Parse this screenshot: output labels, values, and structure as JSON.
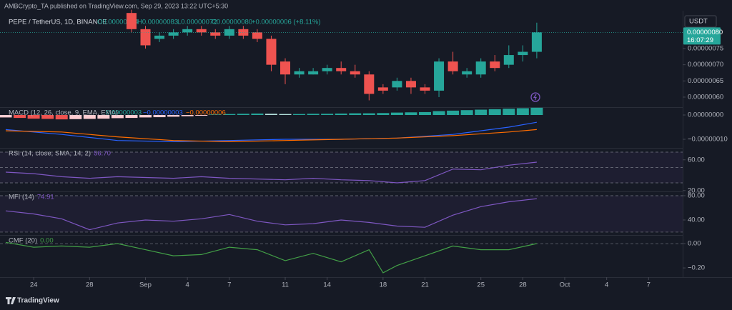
{
  "header": {
    "publisher": "AMBCrypto_TA published on TradingView.com, Sep 29, 2023 13:22 UTC+5:30"
  },
  "currency": "USDT",
  "footer": "TradingView",
  "chart_data": [
    {
      "type": "candlestick",
      "title": "PEPE / TetherUS, 1D, BINANCE",
      "ohlc_labels": [
        "O0.00000074",
        "H0.00000083",
        "L0.00000072",
        "C0.00000080"
      ],
      "change_label": "+0.00000006 (+8.11%)",
      "last_price_label": "0.00000080",
      "countdown": "16:07:29",
      "up_color": "#26a69a",
      "down_color": "#ef5350",
      "x": [
        9,
        10,
        11,
        12,
        13,
        14,
        15,
        16,
        17,
        18,
        19,
        20,
        21,
        22,
        23,
        24,
        25,
        26,
        27,
        28,
        29,
        30,
        31,
        32,
        33,
        34,
        35,
        36,
        37,
        38
      ],
      "open": [
        8.6e-07,
        8.1e-07,
        7.8e-07,
        7.9e-07,
        8e-07,
        8.1e-07,
        8e-07,
        7.9e-07,
        8.1e-07,
        8e-07,
        7.8e-07,
        7.1e-07,
        6.7e-07,
        6.7e-07,
        6.8e-07,
        6.9e-07,
        6.8e-07,
        6.7e-07,
        6.3e-07,
        6.3e-07,
        6.5e-07,
        6.3e-07,
        6.2e-07,
        7.1e-07,
        6.7e-07,
        6.7e-07,
        7.1e-07,
        7e-07,
        7.3e-07,
        7.4e-07
      ],
      "high": [
        8.7e-07,
        8.2e-07,
        8e-07,
        8.1e-07,
        8.2e-07,
        8.2e-07,
        8.1e-07,
        8.2e-07,
        8.2e-07,
        8.1e-07,
        7.9e-07,
        7.2e-07,
        6.9e-07,
        6.9e-07,
        7e-07,
        7.1e-07,
        7e-07,
        6.8e-07,
        6.4e-07,
        6.6e-07,
        6.6e-07,
        6.4e-07,
        7.2e-07,
        7.4e-07,
        6.9e-07,
        7.2e-07,
        7.3e-07,
        7.6e-07,
        7.6e-07,
        8.3e-07
      ],
      "low": [
        8e-07,
        7.5e-07,
        7.7e-07,
        7.8e-07,
        7.9e-07,
        7.9e-07,
        7.8e-07,
        7.8e-07,
        7.8e-07,
        7.7e-07,
        6.8e-07,
        6.4e-07,
        6.6e-07,
        6.7e-07,
        6.7e-07,
        6.7e-07,
        6.6e-07,
        5.9e-07,
        6.1e-07,
        6.2e-07,
        6.1e-07,
        6.1e-07,
        6e-07,
        6.7e-07,
        6.6e-07,
        6.6e-07,
        6.8e-07,
        6.9e-07,
        7.1e-07,
        7.2e-07
      ],
      "close": [
        8.1e-07,
        7.6e-07,
        7.9e-07,
        8e-07,
        8.1e-07,
        8e-07,
        7.9e-07,
        8.1e-07,
        7.9e-07,
        7.8e-07,
        7e-07,
        6.7e-07,
        6.8e-07,
        6.8e-07,
        6.9e-07,
        6.8e-07,
        6.7e-07,
        6.1e-07,
        6.2e-07,
        6.5e-07,
        6.3e-07,
        6.2e-07,
        7.1e-07,
        6.8e-07,
        6.8e-07,
        7.1e-07,
        6.9e-07,
        7.3e-07,
        7.4e-07,
        8e-07
      ],
      "ylim": [
        5.69e-07,
        8.67e-07
      ],
      "yticks": [
        {
          "value": 7.5e-07,
          "label": "0.00000075"
        },
        {
          "value": 7e-07,
          "label": "0.00000070"
        },
        {
          "value": 6.5e-07,
          "label": "0.00000065"
        },
        {
          "value": 6e-07,
          "label": "0.00000060"
        }
      ],
      "xlim": [
        -0.41,
        48.44
      ],
      "xticks": [
        {
          "value": 2,
          "label": "24"
        },
        {
          "value": 6,
          "label": "28"
        },
        {
          "value": 10,
          "label": "Sep"
        },
        {
          "value": 13,
          "label": "4"
        },
        {
          "value": 16,
          "label": "7"
        },
        {
          "value": 20,
          "label": "11"
        },
        {
          "value": 23,
          "label": "14"
        },
        {
          "value": 27,
          "label": "18"
        },
        {
          "value": 30,
          "label": "21"
        },
        {
          "value": 34,
          "label": "25"
        },
        {
          "value": 37,
          "label": "28"
        },
        {
          "value": 40,
          "label": "Oct"
        },
        {
          "value": 43,
          "label": "4"
        },
        {
          "value": 46,
          "label": "7"
        }
      ]
    },
    {
      "type": "macd",
      "title": "MACD (12, 26, close, 9, EMA, EMA)",
      "legend_values": [
        "0.00000003",
        "−0.00000003",
        "−0.00000006"
      ],
      "legend_colors": [
        "#26a69a",
        "#2962ff",
        "#ff6d00"
      ],
      "x": [
        0,
        1,
        2,
        3,
        4,
        5,
        6,
        7,
        8,
        9,
        10,
        11,
        12,
        13,
        14,
        15,
        16,
        17,
        18,
        19,
        20,
        21,
        22,
        23,
        24,
        25,
        26,
        27,
        28,
        29,
        30,
        31,
        32,
        33,
        34,
        35,
        36,
        37,
        38
      ],
      "histogram": [
        -1e-08,
        -1.2e-08,
        -1.5e-08,
        -1.6e-08,
        -1.8e-08,
        -1.7e-08,
        -1.6e-08,
        -1.5e-08,
        -1.3e-08,
        -1.2e-08,
        -1e-08,
        -9e-09,
        -7e-09,
        -5e-09,
        -3e-09,
        2e-09,
        4e-09,
        5e-09,
        6e-09,
        5e-09,
        4e-09,
        4e-09,
        5e-09,
        5e-09,
        6e-09,
        7e-09,
        7e-09,
        8e-09,
        1e-08,
        1.1e-08,
        1.2e-08,
        1.6e-08,
        1.8e-08,
        2e-08,
        2.2e-08,
        2.4e-08,
        2.6e-08,
        2.8e-08,
        3e-08
      ],
      "histogram_colors": {
        "positive_rising": "#26a69a",
        "positive_falling": "#b2dfdb",
        "negative_falling": "#ef5350",
        "negative_rising": "#ffcdd2"
      },
      "lines": [
        {
          "color": "#2962ff",
          "x": [
            0,
            4,
            8,
            12,
            16,
            20,
            24,
            28,
            32,
            36,
            38
          ],
          "values": [
            -6e-08,
            -8e-08,
            -1.05e-07,
            -1.1e-07,
            -1.05e-07,
            -1e-07,
            -1e-07,
            -9.5e-08,
            -8e-08,
            -5e-08,
            -3e-08
          ]
        },
        {
          "color": "#ff6d00",
          "x": [
            0,
            4,
            8,
            12,
            16,
            20,
            24,
            28,
            32,
            36,
            38
          ],
          "values": [
            -6.5e-08,
            -7e-08,
            -9e-08,
            -1.05e-07,
            -1.1e-07,
            -1.05e-07,
            -1e-07,
            -9.5e-08,
            -8.5e-08,
            -7e-08,
            -6e-08
          ]
        }
      ],
      "ylim": [
        -1.294e-07,
        2.65e-08
      ],
      "yticks": [
        {
          "value": 0,
          "label": "0.00000000"
        },
        {
          "value": -1e-07,
          "label": "−0.00000010"
        }
      ]
    },
    {
      "type": "line",
      "title": "RSI (14, close, SMA, 14, 2)",
      "legend_value": "56.70",
      "color": "#7e57c2",
      "x": [
        0,
        2,
        4,
        6,
        8,
        10,
        12,
        14,
        16,
        18,
        20,
        22,
        24,
        26,
        28,
        30,
        32,
        34,
        36,
        38
      ],
      "values": [
        44,
        42,
        38,
        36,
        38,
        37,
        36,
        38,
        36,
        35,
        34,
        36,
        34,
        33,
        30,
        33,
        48,
        47,
        53,
        57
      ],
      "bands": [
        70,
        50,
        30
      ],
      "ylim": [
        19.8,
        73.7
      ],
      "yticks": [
        {
          "value": 60,
          "label": "60.00"
        },
        {
          "value": 20,
          "label": "20.00"
        }
      ]
    },
    {
      "type": "line",
      "title": "MFI (14)",
      "legend_value": "74.91",
      "color": "#7e57c2",
      "x": [
        0,
        2,
        4,
        6,
        8,
        10,
        12,
        14,
        16,
        18,
        20,
        22,
        24,
        26,
        28,
        30,
        32,
        34,
        36,
        38
      ],
      "values": [
        55,
        50,
        42,
        24,
        35,
        40,
        38,
        42,
        49,
        38,
        32,
        34,
        40,
        36,
        30,
        28,
        48,
        62,
        70,
        75
      ],
      "bands": [
        80,
        20
      ],
      "ylim": [
        17.6,
        84.7
      ],
      "yticks": [
        {
          "value": 80,
          "label": "80.00"
        },
        {
          "value": 40,
          "label": "40.00"
        }
      ]
    },
    {
      "type": "line",
      "title": "CMF (20)",
      "legend_value": "0.00",
      "color": "#43a047",
      "x": [
        0,
        2,
        4,
        6,
        8,
        10,
        12,
        14,
        16,
        18,
        20,
        22,
        24,
        26,
        27,
        28,
        30,
        32,
        34,
        36,
        38
      ],
      "values": [
        0.01,
        -0.03,
        -0.02,
        -0.03,
        0,
        -0.05,
        -0.1,
        -0.09,
        -0.03,
        -0.05,
        -0.14,
        -0.08,
        -0.15,
        -0.05,
        -0.24,
        -0.18,
        -0.1,
        -0.02,
        -0.05,
        -0.05,
        0
      ],
      "bands": [
        0
      ],
      "ylim": [
        -0.27,
        0.059
      ],
      "yticks": [
        {
          "value": 0,
          "label": "0.00"
        },
        {
          "value": -0.2,
          "label": "−0.20"
        }
      ]
    }
  ]
}
